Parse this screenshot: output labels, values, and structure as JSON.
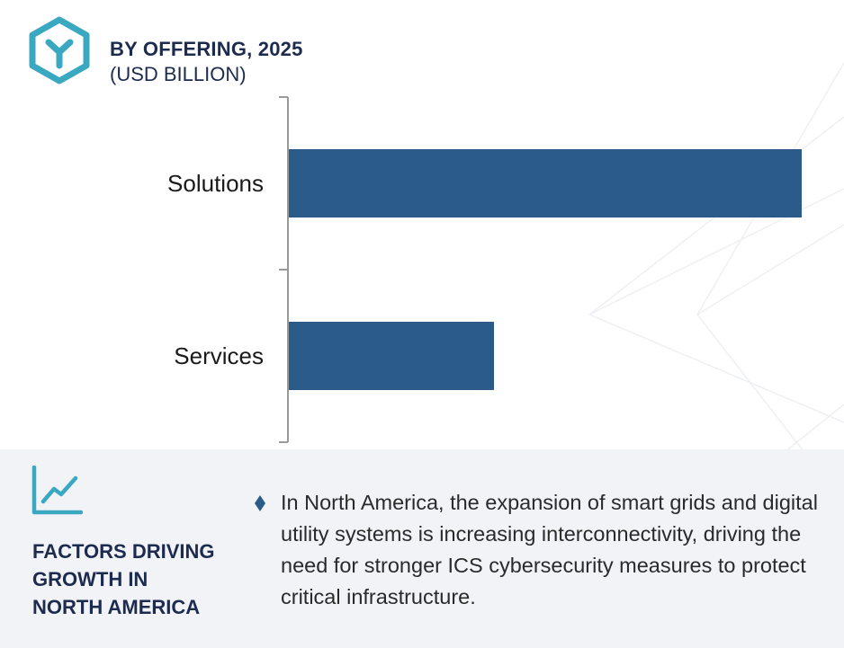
{
  "header": {
    "logo_icon": "hexagon-y-logo-icon",
    "title": "BY OFFERING, 2025",
    "subtitle": "(USD BILLION)"
  },
  "chart_data": {
    "type": "bar",
    "orientation": "horizontal",
    "title": "BY OFFERING, 2025",
    "subtitle": "(USD BILLION)",
    "categories": [
      "Solutions",
      "Services"
    ],
    "values": [
      10.0,
      4.0
    ],
    "xlabel": "",
    "ylabel": "",
    "xlim": [
      0,
      10.0
    ],
    "grid": false,
    "legend": "none",
    "bar_color": "#2b5b88"
  },
  "factors": {
    "icon": "line-chart-icon",
    "title": "FACTORS DRIVING\nGROWTH IN\nNORTH AMERICA",
    "bullet_icon": "diamond-bullet-icon",
    "text": "In North America, the expansion of smart grids and digital utility systems is increasing interconnectivity, driving the need for stronger ICS cybersecurity measures to protect critical infrastructure."
  },
  "colors": {
    "accent": "#3aa8c1",
    "bar": "#2b5b88",
    "heading": "#1d2b4f",
    "panel": "#f1f3f7"
  }
}
